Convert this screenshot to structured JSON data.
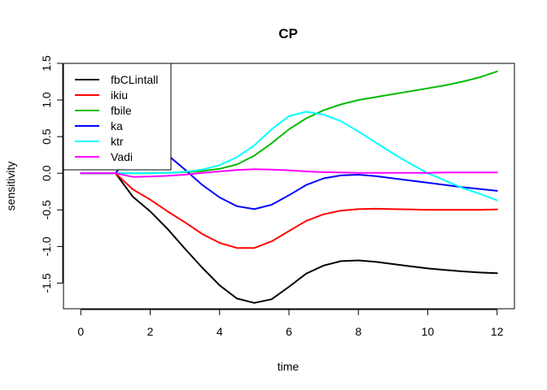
{
  "chart_data": {
    "type": "line",
    "title": "CP",
    "xlabel": "time",
    "ylabel": "sensitivity",
    "xlim": [
      -0.5,
      12.5
    ],
    "ylim": [
      -1.85,
      1.5
    ],
    "x_ticks": [
      0,
      2,
      4,
      6,
      8,
      10,
      12
    ],
    "y_ticks": [
      -1.5,
      -1.0,
      -0.5,
      0.0,
      0.5,
      1.0,
      1.5
    ],
    "x_tick_labels": [
      "0",
      "2",
      "4",
      "6",
      "8",
      "10",
      "12"
    ],
    "y_tick_labels": [
      "-1.5",
      "-1.0",
      "-0.5",
      "0.0",
      "0.5",
      "1.0",
      "1.5"
    ],
    "grid": false,
    "legend_position": "top-left",
    "series": [
      {
        "name": "fbCLintall",
        "color": "#000000",
        "x": [
          0,
          0.5,
          1,
          1.5,
          2,
          2.5,
          3,
          3.5,
          4,
          4.5,
          5,
          5.5,
          6,
          6.5,
          7,
          7.5,
          8,
          8.5,
          9,
          9.5,
          10,
          10.5,
          11,
          11.5,
          12
        ],
        "y": [
          0,
          0,
          0,
          -0.32,
          -0.52,
          -0.76,
          -1.03,
          -1.29,
          -1.53,
          -1.71,
          -1.77,
          -1.72,
          -1.55,
          -1.37,
          -1.26,
          -1.2,
          -1.19,
          -1.21,
          -1.24,
          -1.27,
          -1.3,
          -1.32,
          -1.34,
          -1.355,
          -1.365
        ]
      },
      {
        "name": "ikiu",
        "color": "#ff0000",
        "x": [
          0,
          0.5,
          1,
          1.5,
          2,
          2.5,
          3,
          3.5,
          4,
          4.5,
          5,
          5.5,
          6,
          6.5,
          7,
          7.5,
          8,
          8.5,
          9,
          9.5,
          10,
          10.5,
          11,
          11.5,
          12
        ],
        "y": [
          0,
          0,
          0,
          -0.22,
          -0.36,
          -0.52,
          -0.67,
          -0.83,
          -0.95,
          -1.02,
          -1.02,
          -0.93,
          -0.79,
          -0.65,
          -0.56,
          -0.51,
          -0.49,
          -0.485,
          -0.49,
          -0.495,
          -0.5,
          -0.5,
          -0.5,
          -0.5,
          -0.495
        ]
      },
      {
        "name": "fbile",
        "color": "#00bb00",
        "x": [
          0,
          0.5,
          1,
          1.5,
          2,
          2.5,
          3,
          3.5,
          4,
          4.5,
          5,
          5.5,
          6,
          6.5,
          7,
          7.5,
          8,
          8.5,
          9,
          9.5,
          10,
          10.5,
          11,
          11.5,
          12
        ],
        "y": [
          0,
          0,
          0,
          0,
          0,
          0.005,
          0.015,
          0.03,
          0.06,
          0.12,
          0.24,
          0.41,
          0.6,
          0.75,
          0.86,
          0.94,
          1.0,
          1.04,
          1.08,
          1.12,
          1.16,
          1.2,
          1.25,
          1.31,
          1.39
        ]
      },
      {
        "name": "ka",
        "color": "#0000ff",
        "x": [
          0,
          0.5,
          1,
          1.5,
          2,
          2.5,
          3,
          3.5,
          4,
          4.5,
          5,
          5.5,
          6,
          6.5,
          7,
          7.5,
          8,
          8.5,
          9,
          9.5,
          10,
          10.5,
          11,
          11.5,
          12
        ],
        "y": [
          0,
          0,
          0,
          0.3,
          0.3,
          0.25,
          0.05,
          -0.16,
          -0.33,
          -0.45,
          -0.49,
          -0.43,
          -0.3,
          -0.16,
          -0.07,
          -0.03,
          -0.02,
          -0.04,
          -0.07,
          -0.1,
          -0.13,
          -0.16,
          -0.19,
          -0.215,
          -0.24
        ]
      },
      {
        "name": "ktr",
        "color": "#00ffff",
        "x": [
          0,
          0.5,
          1,
          1.5,
          2,
          2.5,
          3,
          3.5,
          4,
          4.5,
          5,
          5.5,
          6,
          6.5,
          7,
          7.5,
          8,
          8.5,
          9,
          9.5,
          10,
          10.5,
          11,
          11.5,
          12
        ],
        "y": [
          0,
          0,
          0,
          0,
          0,
          0.005,
          0.02,
          0.05,
          0.11,
          0.22,
          0.38,
          0.6,
          0.78,
          0.84,
          0.8,
          0.71,
          0.57,
          0.42,
          0.27,
          0.13,
          0.0,
          -0.1,
          -0.2,
          -0.28,
          -0.37
        ]
      },
      {
        "name": "Vadi",
        "color": "#ff00ff",
        "x": [
          0,
          0.5,
          1,
          1.5,
          2,
          2.5,
          3,
          3.5,
          4,
          4.5,
          5,
          5.5,
          6,
          6.5,
          7,
          7.5,
          8,
          8.5,
          9,
          9.5,
          10,
          10.5,
          11,
          11.5,
          12
        ],
        "y": [
          0,
          0,
          0,
          -0.05,
          -0.045,
          -0.035,
          -0.02,
          0.005,
          0.025,
          0.045,
          0.055,
          0.05,
          0.04,
          0.025,
          0.015,
          0.01,
          0.005,
          0.005,
          0.005,
          0.005,
          0.005,
          0.01,
          0.01,
          0.01,
          0.01
        ]
      }
    ]
  }
}
